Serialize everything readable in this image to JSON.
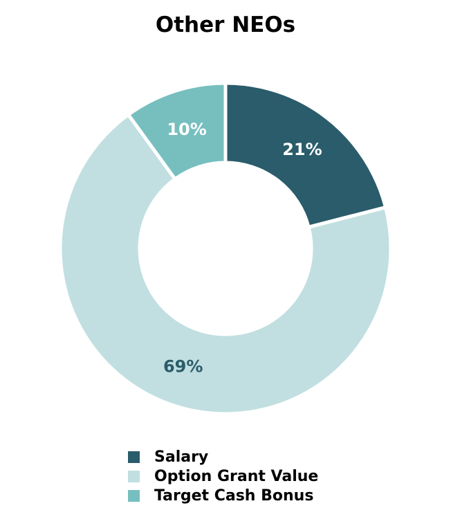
{
  "chart_data": {
    "type": "pie",
    "title": "Other NEOs",
    "donut": true,
    "legend_position": "bottom",
    "slices": [
      {
        "name": "Salary",
        "value": 21,
        "label": "21%",
        "color": "#2a5c6b",
        "label_color": "#ffffff"
      },
      {
        "name": "Option Grant Value",
        "value": 69,
        "label": "69%",
        "color": "#c1dfe0",
        "label_color": "#2a5c6b"
      },
      {
        "name": "Target Cash Bonus",
        "value": 10,
        "label": "10%",
        "color": "#77bfbf",
        "label_color": "#ffffff"
      }
    ]
  }
}
